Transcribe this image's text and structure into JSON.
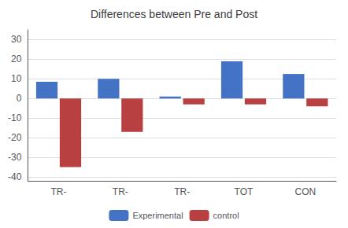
{
  "chart_data": {
    "type": "bar",
    "title": "Differences between Pre and Post",
    "categories": [
      "TR-",
      "TR-",
      "TR-",
      "TOT",
      "CON"
    ],
    "series": [
      {
        "name": "Experimental",
        "color": "#4472C4",
        "values": [
          8.5,
          10,
          1,
          19,
          12.5
        ]
      },
      {
        "name": "control",
        "color": "#B84040",
        "values": [
          -35,
          -17,
          -3,
          -3,
          -4
        ]
      }
    ],
    "ylim": [
      -42,
      35
    ],
    "yticks": [
      -40,
      -30,
      -20,
      -10,
      0,
      10,
      20,
      30
    ],
    "grid": true,
    "legend": "bottom"
  }
}
